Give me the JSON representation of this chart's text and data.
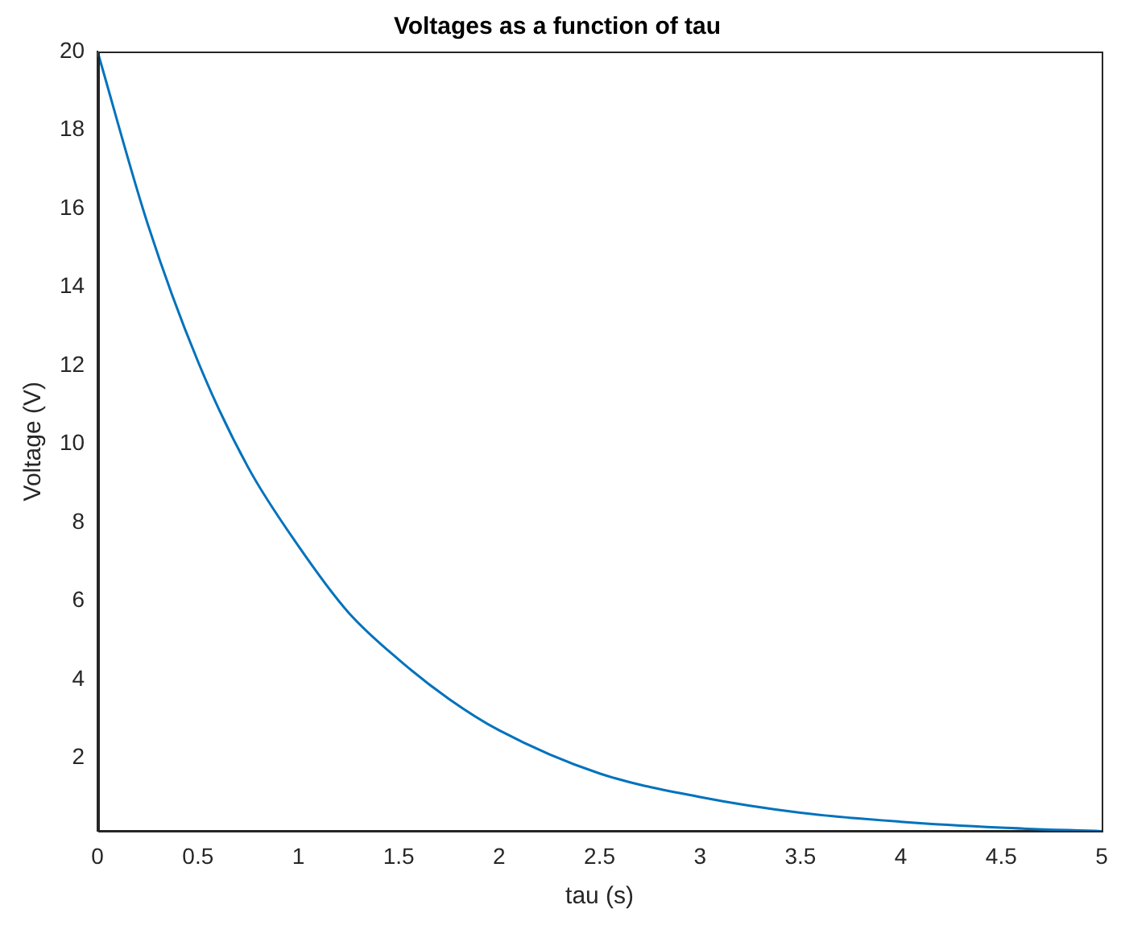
{
  "chart_data": {
    "type": "line",
    "title": "Voltages as a function of tau",
    "xlabel": "tau (s)",
    "ylabel": "Voltage (V)",
    "x": [
      0,
      0.25,
      0.5,
      0.75,
      1,
      1.25,
      1.5,
      1.75,
      2,
      2.5,
      3,
      3.5,
      4,
      4.5,
      5
    ],
    "series": [
      {
        "color": "#0072bd",
        "values": [
          20,
          15.6,
          12.1,
          9.4,
          7.4,
          5.7,
          4.5,
          3.5,
          2.7,
          1.6,
          1.0,
          0.6,
          0.37,
          0.22,
          0.13
        ]
      }
    ],
    "xlim": [
      0,
      5
    ],
    "xticks": [
      0,
      0.5,
      1,
      1.5,
      2,
      2.5,
      3,
      3.5,
      4,
      4.5,
      5
    ],
    "ylim": [
      0.13,
      20
    ],
    "yticks": [
      2,
      4,
      6,
      8,
      10,
      12,
      14,
      16,
      18,
      20
    ],
    "grid": false,
    "legend": false,
    "marker": "none",
    "line_style": "solid"
  }
}
